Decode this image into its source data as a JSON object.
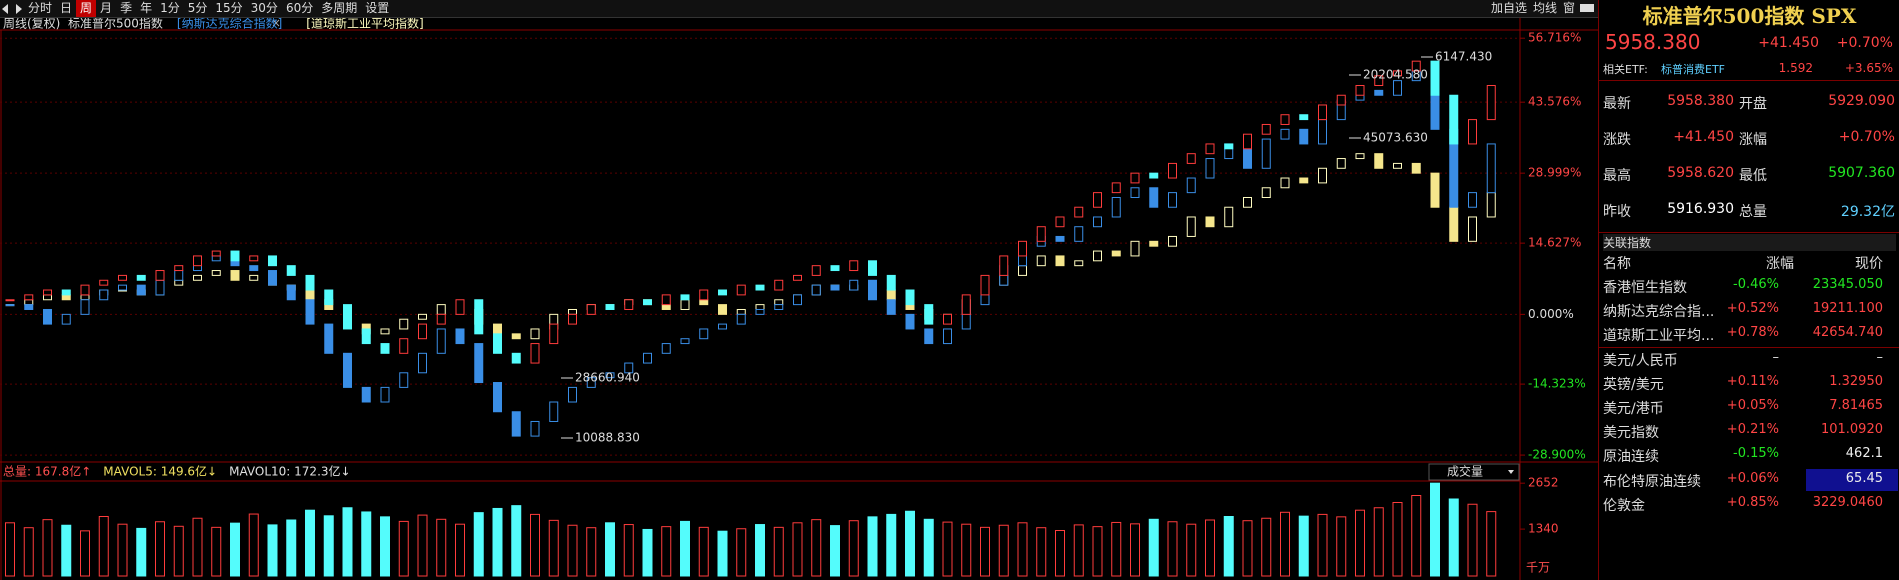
{
  "toolbar": {
    "tabs": [
      "分时",
      "日",
      "周",
      "月",
      "季",
      "年",
      "1分",
      "5分",
      "15分",
      "30分",
      "60分",
      "多周期",
      "设置"
    ],
    "active_tab": "周",
    "tools": [
      "加自选",
      "均线",
      "窗"
    ]
  },
  "chart_header": {
    "period": "周线(复权)"
  },
  "chart_data": [
    {
      "type": "candlestick",
      "series": [
        {
          "name": "标准普尔500指数",
          "color": "#ff3c3c",
          "down_color": "#54fcfc",
          "values": [
            3,
            4,
            5,
            4,
            6,
            7,
            8,
            7,
            9,
            10,
            12,
            13,
            11,
            12,
            10,
            8,
            5,
            2,
            -3,
            -6,
            -8,
            -5,
            -2,
            0,
            3,
            -4,
            -8,
            -10,
            -6,
            -2,
            0,
            2,
            1,
            3,
            2,
            4,
            3,
            5,
            4,
            6,
            5,
            7,
            8,
            10,
            9,
            11,
            8,
            5,
            2,
            -2,
            0,
            4,
            8,
            12,
            15,
            18,
            20,
            22,
            25,
            27,
            29,
            28,
            31,
            33,
            35,
            34,
            37,
            39,
            41,
            40,
            43,
            45,
            47,
            49,
            50,
            52,
            45,
            35,
            40,
            47
          ]
        },
        {
          "name": "[纳斯达克综合指数]",
          "color": "#3a8ee6",
          "down_color": "#3a8ee6",
          "values": [
            2,
            1,
            -2,
            0,
            3,
            5,
            6,
            4,
            7,
            9,
            11,
            12,
            10,
            9,
            6,
            3,
            -2,
            -8,
            -15,
            -18,
            -15,
            -12,
            -8,
            -3,
            -6,
            -14,
            -20,
            -25,
            -22,
            -18,
            -15,
            -13,
            -12,
            -10,
            -8,
            -6,
            -5,
            -3,
            -2,
            0,
            1,
            2,
            4,
            6,
            5,
            7,
            3,
            0,
            -3,
            -6,
            -3,
            2,
            6,
            10,
            14,
            16,
            15,
            18,
            20,
            24,
            26,
            22,
            25,
            28,
            32,
            35,
            30,
            36,
            38,
            35,
            40,
            44,
            46,
            45,
            48,
            50,
            38,
            22,
            25,
            35
          ]
        },
        {
          "name": "[道琼斯工业平均指数]",
          "color": "#fffcc0",
          "down_color": "#f5e68c",
          "values": [
            2,
            3,
            4,
            3,
            4,
            5,
            5,
            4,
            6,
            7,
            8,
            9,
            7,
            8,
            6,
            5,
            3,
            1,
            -2,
            -4,
            -3,
            -1,
            0,
            2,
            1,
            -2,
            -4,
            -5,
            -3,
            0,
            1,
            2,
            2,
            3,
            2,
            1,
            3,
            2,
            0,
            1,
            2,
            3,
            4,
            6,
            5,
            6,
            5,
            3,
            1,
            -1,
            0,
            3,
            6,
            8,
            10,
            12,
            10,
            11,
            13,
            12,
            15,
            14,
            16,
            20,
            18,
            22,
            24,
            26,
            28,
            27,
            30,
            32,
            33,
            30,
            31,
            29,
            22,
            15,
            20,
            25
          ]
        }
      ],
      "ylim": [
        -29.5,
        58.4
      ],
      "yticks": [
        {
          "value": 56.716,
          "label": "56.716%"
        },
        {
          "value": 43.576,
          "label": "43.576%"
        },
        {
          "value": 28.999,
          "label": "28.999%"
        },
        {
          "value": 14.627,
          "label": "14.627%"
        },
        {
          "value": 0,
          "label": "0.000%"
        },
        {
          "value": -14.323,
          "label": "-14.323%"
        },
        {
          "value": -28.9,
          "label": "-28.900%"
        }
      ],
      "grid": true,
      "annotations": [
        "6147.430",
        "20204.580",
        "45073.630",
        "28660.940",
        "10088.830"
      ]
    },
    {
      "type": "bar",
      "color": "#ff3c3c",
      "down_color": "#54fcfc",
      "values": [
        1520,
        1380,
        1610,
        1450,
        1290,
        1700,
        1480,
        1360,
        1550,
        1420,
        1650,
        1390,
        1510,
        1770,
        1460,
        1600,
        1880,
        1720,
        1950,
        1830,
        1690,
        1560,
        1740,
        1620,
        1480,
        1810,
        1930,
        2010,
        1760,
        1590,
        1450,
        1380,
        1520,
        1470,
        1330,
        1410,
        1560,
        1390,
        1280,
        1350,
        1470,
        1390,
        1520,
        1610,
        1440,
        1580,
        1690,
        1760,
        1850,
        1620,
        1540,
        1480,
        1390,
        1450,
        1520,
        1380,
        1300,
        1460,
        1410,
        1530,
        1490,
        1620,
        1550,
        1480,
        1600,
        1700,
        1580,
        1650,
        1820,
        1710,
        1760,
        1690,
        1880,
        1950,
        2100,
        2300,
        2652,
        2200,
        2050,
        1840
      ],
      "ylim": [
        0,
        2800
      ],
      "yticks": [
        2652,
        1340
      ],
      "unit": "千万",
      "legend": [
        {
          "text": "总量: 167.8亿↑",
          "color": "#ff5050"
        },
        {
          "text": "MAVOL5: 149.6亿↓",
          "color": "#f0e060"
        },
        {
          "text": "MAVOL10: 172.3亿↓",
          "color": "#e0e0e0"
        }
      ],
      "selector": "成交量"
    }
  ],
  "quote": {
    "title": "标准普尔500指数 SPX",
    "price": "5958.380",
    "change": "+41.450",
    "change_pct": "+0.70%",
    "etf": {
      "label": "相关ETF:",
      "name": "标普消费ETF",
      "price": "1.592",
      "pct": "+3.65%"
    },
    "rows": [
      {
        "l1": "最新",
        "v1": "5958.380",
        "c1": "#ff4545",
        "l2": "开盘",
        "v2": "5929.090",
        "c2": "#ff4545"
      },
      {
        "l1": "涨跌",
        "v1": "+41.450",
        "c1": "#ff4545",
        "l2": "涨幅",
        "v2": "+0.70%",
        "c2": "#ff4545"
      },
      {
        "l1": "最高",
        "v1": "5958.620",
        "c1": "#ff4545",
        "l2": "最低",
        "v2": "5907.360",
        "c2": "#22e622"
      },
      {
        "l1": "昨收",
        "v1": "5916.930",
        "c1": "#ffffff",
        "l2": "总量",
        "v2": "29.32亿",
        "c2": "#5fd0ff"
      }
    ]
  },
  "related": {
    "title": "关联指数",
    "columns": [
      "名称",
      "涨幅",
      "现价"
    ],
    "rows": [
      {
        "name": "香港恒生指数",
        "chg": "-0.46%",
        "price": "23345.050",
        "chg_color": "#22e622",
        "price_color": "#22e622"
      },
      {
        "name": "纳斯达克综合指...",
        "chg": "+0.52%",
        "price": "19211.100",
        "chg_color": "#ff4545",
        "price_color": "#ff4545"
      },
      {
        "name": "道琼斯工业平均...",
        "chg": "+0.78%",
        "price": "42654.740",
        "chg_color": "#ff4545",
        "price_color": "#ff4545"
      },
      {
        "name": "美元/人民币",
        "chg": "–",
        "price": "–",
        "chg_color": "#dddddd",
        "price_color": "#dddddd"
      },
      {
        "name": "英镑/美元",
        "chg": "+0.11%",
        "price": "1.32950",
        "chg_color": "#ff4545",
        "price_color": "#ff4545"
      },
      {
        "name": "美元/港币",
        "chg": "+0.05%",
        "price": "7.81465",
        "chg_color": "#ff4545",
        "price_color": "#ff4545"
      },
      {
        "name": "美元指数",
        "chg": "+0.21%",
        "price": "101.0920",
        "chg_color": "#ff4545",
        "price_color": "#ff4545"
      },
      {
        "name": "原油连续",
        "chg": "-0.15%",
        "price": "462.1",
        "chg_color": "#22e622",
        "price_color": "#eeeeee"
      },
      {
        "name": "布伦特原油连续",
        "chg": "+0.06%",
        "price": "65.45",
        "chg_color": "#ff4545",
        "price_color": "#eeeeee"
      },
      {
        "name": "伦敦金",
        "chg": "+0.85%",
        "price": "3229.0460",
        "chg_color": "#ff4545",
        "price_color": "#ff4545"
      }
    ]
  }
}
